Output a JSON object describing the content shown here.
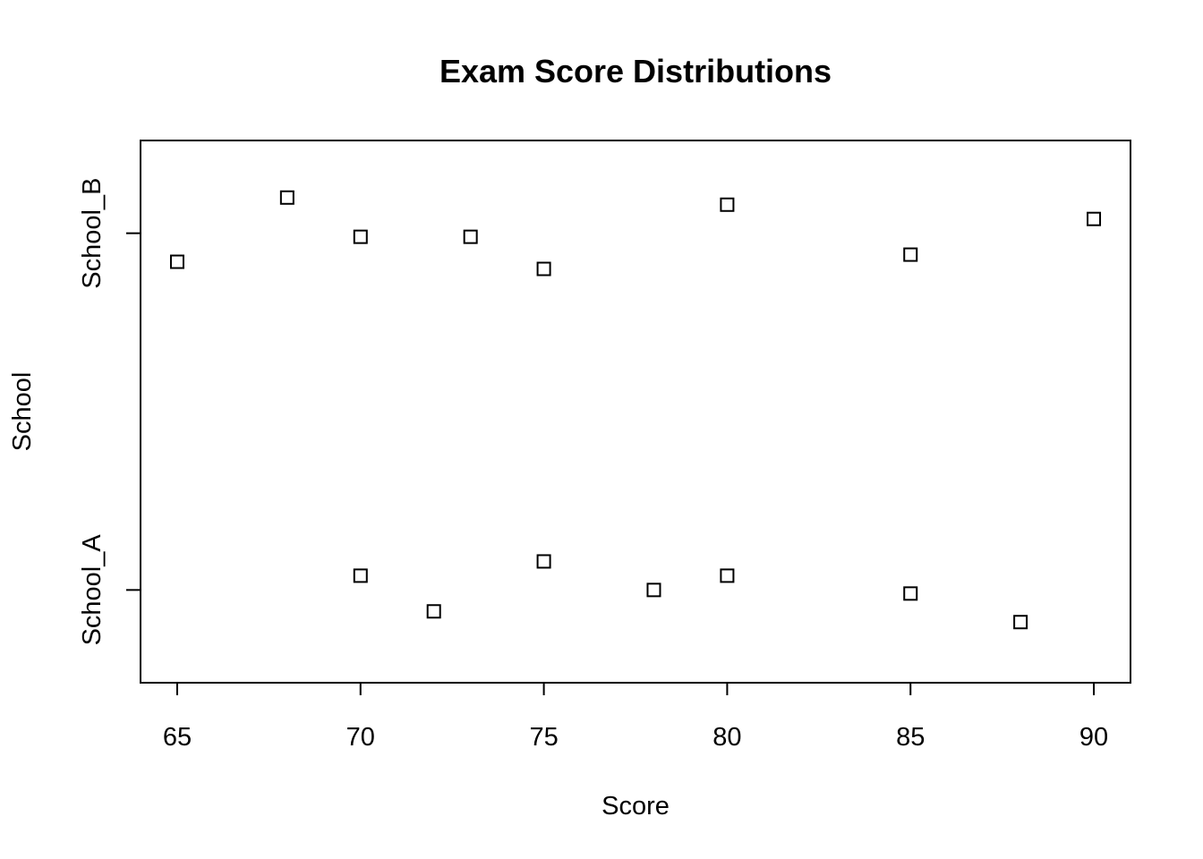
{
  "chart_data": {
    "type": "scatter",
    "title": "Exam Score Distributions",
    "xlabel": "Score",
    "ylabel": "School",
    "xlim": [
      64,
      91
    ],
    "x_ticks": [
      65,
      70,
      75,
      80,
      85,
      90
    ],
    "categories": [
      "School_A",
      "School_B"
    ],
    "grid": false,
    "legend": "none",
    "jitter": true,
    "marker": "open-square",
    "colors": {
      "marker": "#000000",
      "axis": "#000000",
      "background": "#ffffff"
    },
    "series": [
      {
        "category": "School_A",
        "points": [
          {
            "x": 70,
            "y": 1.04
          },
          {
            "x": 72,
            "y": 0.94
          },
          {
            "x": 75,
            "y": 1.08
          },
          {
            "x": 78,
            "y": 1.0
          },
          {
            "x": 80,
            "y": 1.04
          },
          {
            "x": 85,
            "y": 0.99
          },
          {
            "x": 88,
            "y": 0.91
          }
        ]
      },
      {
        "category": "School_B",
        "points": [
          {
            "x": 65,
            "y": 1.92
          },
          {
            "x": 68,
            "y": 2.1
          },
          {
            "x": 70,
            "y": 1.99
          },
          {
            "x": 73,
            "y": 1.99
          },
          {
            "x": 75,
            "y": 1.9
          },
          {
            "x": 80,
            "y": 2.08
          },
          {
            "x": 85,
            "y": 1.94
          },
          {
            "x": 90,
            "y": 2.04
          }
        ]
      }
    ]
  }
}
